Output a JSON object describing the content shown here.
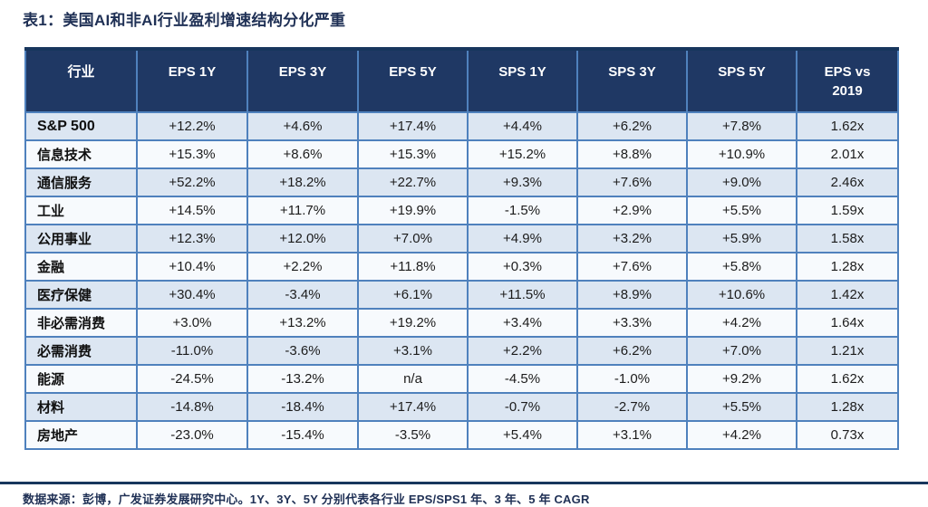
{
  "title": "表1：美国AI和非AI行业盈利增速结构分化严重",
  "table": {
    "headers": [
      "行业",
      "EPS 1Y",
      "EPS 3Y",
      "EPS 5Y",
      "SPS 1Y",
      "SPS 3Y",
      "SPS 5Y",
      "EPS vs 2019"
    ],
    "rows": [
      {
        "industry": "S&P 500",
        "values": [
          "+12.2%",
          "+4.6%",
          "+17.4%",
          "+4.4%",
          "+6.2%",
          "+7.8%",
          "1.62x"
        ]
      },
      {
        "industry": "信息技术",
        "values": [
          "+15.3%",
          "+8.6%",
          "+15.3%",
          "+15.2%",
          "+8.8%",
          "+10.9%",
          "2.01x"
        ]
      },
      {
        "industry": "通信服务",
        "values": [
          "+52.2%",
          "+18.2%",
          "+22.7%",
          "+9.3%",
          "+7.6%",
          "+9.0%",
          "2.46x"
        ]
      },
      {
        "industry": "工业",
        "values": [
          "+14.5%",
          "+11.7%",
          "+19.9%",
          "-1.5%",
          "+2.9%",
          "+5.5%",
          "1.59x"
        ]
      },
      {
        "industry": "公用事业",
        "values": [
          "+12.3%",
          "+12.0%",
          "+7.0%",
          "+4.9%",
          "+3.2%",
          "+5.9%",
          "1.58x"
        ]
      },
      {
        "industry": "金融",
        "values": [
          "+10.4%",
          "+2.2%",
          "+11.8%",
          "+0.3%",
          "+7.6%",
          "+5.8%",
          "1.28x"
        ]
      },
      {
        "industry": "医疗保健",
        "values": [
          "+30.4%",
          "-3.4%",
          "+6.1%",
          "+11.5%",
          "+8.9%",
          "+10.6%",
          "1.42x"
        ]
      },
      {
        "industry": "非必需消费",
        "values": [
          "+3.0%",
          "+13.2%",
          "+19.2%",
          "+3.4%",
          "+3.3%",
          "+4.2%",
          "1.64x"
        ]
      },
      {
        "industry": "必需消费",
        "values": [
          "-11.0%",
          "-3.6%",
          "+3.1%",
          "+2.2%",
          "+6.2%",
          "+7.0%",
          "1.21x"
        ]
      },
      {
        "industry": "能源",
        "values": [
          "-24.5%",
          "-13.2%",
          "n/a",
          "-4.5%",
          "-1.0%",
          "+9.2%",
          "1.62x"
        ]
      },
      {
        "industry": "材料",
        "values": [
          "-14.8%",
          "-18.4%",
          "+17.4%",
          "-0.7%",
          "-2.7%",
          "+5.5%",
          "1.28x"
        ]
      },
      {
        "industry": "房地产",
        "values": [
          "-23.0%",
          "-15.4%",
          "-3.5%",
          "+5.4%",
          "+3.1%",
          "+4.2%",
          "0.73x"
        ]
      }
    ]
  },
  "footer": {
    "source_note": "数据来源：彭博，广发证券发展研究中心。1Y、3Y、5Y 分别代表各行业 EPS/SPS1 年、3 年、5 年 CAGR"
  },
  "colors": {
    "header_bg": "#1F3864",
    "grid_border": "#4F81BD",
    "outer_top_border": "#17365D",
    "row_alt_bg": "#DCE6F2",
    "row_bg": "#F7FAFD",
    "title_text": "#1F3055",
    "cell_text": "#1C1C1C"
  }
}
